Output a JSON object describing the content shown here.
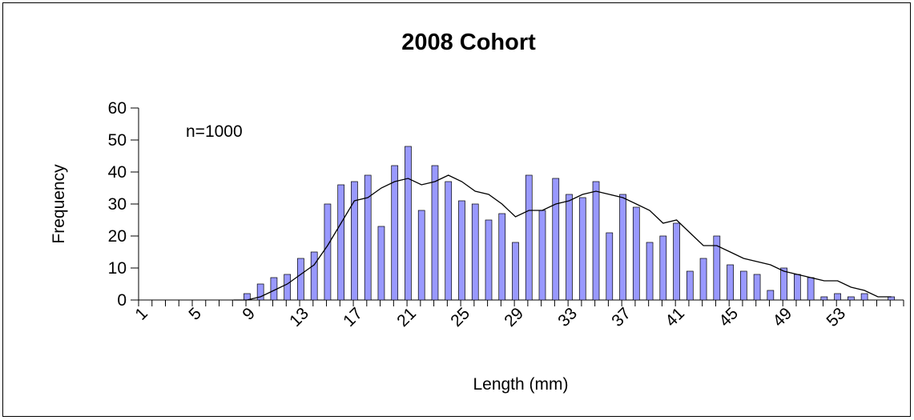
{
  "chart_data": {
    "type": "bar",
    "title": "2008 Cohort",
    "x_label": "Length (mm)",
    "y_label": "Frequency",
    "annotation": "n=1000",
    "categories": [
      1,
      null,
      null,
      null,
      5,
      null,
      null,
      null,
      9,
      null,
      null,
      null,
      13,
      null,
      null,
      null,
      17,
      null,
      null,
      null,
      21,
      null,
      null,
      null,
      25,
      null,
      null,
      null,
      29,
      null,
      null,
      null,
      33,
      null,
      null,
      null,
      37,
      null,
      null,
      null,
      41,
      null,
      null,
      null,
      45,
      null,
      null,
      null,
      49,
      null,
      null,
      null,
      53,
      null,
      null,
      null,
      null
    ],
    "series": [
      {
        "type": "bar",
        "color": "#9999ff",
        "values": [
          0,
          0,
          0,
          0,
          0,
          0,
          0,
          0,
          2,
          5,
          7,
          8,
          13,
          15,
          30,
          36,
          37,
          39,
          23,
          42,
          48,
          28,
          42,
          37,
          31,
          30,
          25,
          27,
          18,
          39,
          28,
          38,
          33,
          32,
          37,
          21,
          33,
          29,
          18,
          20,
          24,
          9,
          13,
          20,
          11,
          9,
          8,
          3,
          10,
          8,
          7,
          1,
          2,
          1,
          2,
          0,
          1
        ]
      },
      {
        "type": "line",
        "color": "#000000",
        "values": [
          null,
          null,
          null,
          null,
          null,
          null,
          null,
          0,
          0,
          1,
          3,
          5,
          8,
          11,
          17,
          24,
          31,
          32,
          35,
          37,
          38,
          36,
          37,
          39,
          37,
          34,
          33,
          30,
          26,
          28,
          28,
          30,
          31,
          33,
          34,
          33,
          32,
          30,
          28,
          24,
          25,
          21,
          17,
          17,
          15,
          13,
          12,
          11,
          9,
          8,
          7,
          6,
          6,
          4,
          3,
          1,
          1
        ]
      }
    ],
    "ylim": [
      0,
      60
    ],
    "yticks": [
      0,
      10,
      20,
      30,
      40,
      50,
      60
    ]
  }
}
